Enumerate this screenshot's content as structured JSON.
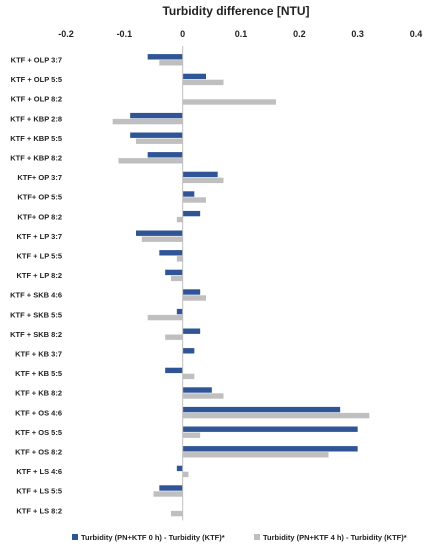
{
  "chart_data": {
    "type": "bar",
    "orientation": "horizontal",
    "title": "Turbidity difference [NTU]",
    "xaxis_position": "top",
    "xlim": [
      -0.2,
      0.4
    ],
    "xticks": [
      "-0.2",
      "-0.1",
      "0",
      "0.1",
      "0.2",
      "0.3",
      "0.4"
    ],
    "tick_values": [
      -0.2,
      -0.1,
      0,
      0.1,
      0.2,
      0.3,
      0.4
    ],
    "grid": false,
    "legend_position": "bottom",
    "categories": [
      "KTF + OLP 3:7",
      "KTF + OLP 5:5",
      "KTF + OLP 8:2",
      "KTF + KBP 2:8",
      "KTF + KBP 5:5",
      "KTF + KBP 8:2",
      "KTF+ OP 3:7",
      "KTF+ OP 5:5",
      "KTF+ OP 8:2",
      "KTF + LP 3:7",
      "KTF + LP 5:5",
      "KTF + LP 8:2",
      "KTF + SKB 4:6",
      "KTF + SKB 5:5",
      "KTF + SKB 8:2",
      "KTF + KB 3:7",
      "KTF + KB 5:5",
      "KTF + KB 8:2",
      "KTF + OS 4:6",
      "KTF + OS 5:5",
      "KTF + OS 8:2",
      "KTF + LS 4:6",
      "KTF + LS 5:5",
      "KTF + LS 8:2"
    ],
    "series": [
      {
        "name": "Turbidity (PN+KTF 0 h) - Turbidity (KTF)*",
        "color": "#2f5597",
        "values": [
          -0.06,
          0.04,
          0,
          -0.09,
          -0.09,
          -0.06,
          0.06,
          0.02,
          0.03,
          -0.08,
          -0.04,
          -0.03,
          0.03,
          -0.01,
          0.03,
          0.02,
          -0.03,
          0.05,
          0.27,
          0.3,
          0.3,
          -0.01,
          -0.04,
          0
        ]
      },
      {
        "name": "Turbidity (PN+KTF 4 h) - Turbidity (KTF)*",
        "color": "#bfbfbf",
        "values": [
          -0.04,
          0.07,
          0.16,
          -0.12,
          -0.08,
          -0.11,
          0.07,
          0.04,
          -0.01,
          -0.07,
          -0.01,
          -0.02,
          0.04,
          -0.06,
          -0.03,
          0,
          0.02,
          0.07,
          0.32,
          0.03,
          0.25,
          0.01,
          -0.05,
          -0.02
        ]
      }
    ]
  }
}
